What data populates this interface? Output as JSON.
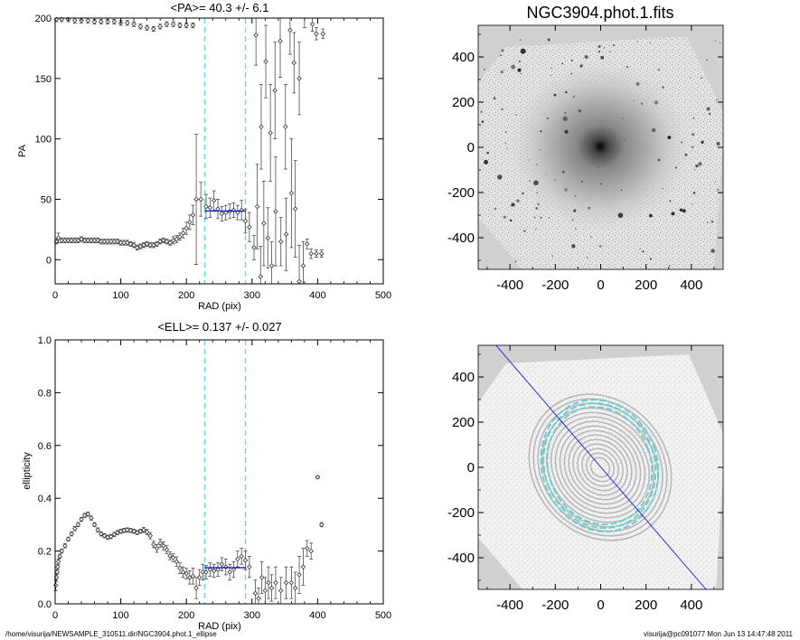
{
  "chart_data": [
    {
      "type": "scatter",
      "panel": "pa-profile",
      "title": "<PA>=  40.3 +/-   6.1",
      "xlabel": "RAD (pix)",
      "ylabel": "PA",
      "xlim": [
        0,
        500
      ],
      "ylim": [
        -20,
        200
      ],
      "xticks": [
        0,
        100,
        200,
        300,
        400,
        500
      ],
      "yticks": [
        0,
        50,
        100,
        150,
        200
      ],
      "vlines": [
        228,
        290
      ],
      "mean_segment": {
        "x": [
          228,
          290
        ],
        "y": 40.3
      },
      "series": [
        {
          "points": [
            [
              2,
              15
            ],
            [
              5,
              18
            ],
            [
              10,
              16
            ],
            [
              15,
              16
            ],
            [
              20,
              16
            ],
            [
              25,
              16
            ],
            [
              30,
              16
            ],
            [
              35,
              16
            ],
            [
              40,
              17
            ],
            [
              45,
              16
            ],
            [
              50,
              16
            ],
            [
              55,
              16
            ],
            [
              60,
              16
            ],
            [
              65,
              16
            ],
            [
              70,
              15
            ],
            [
              75,
              15
            ],
            [
              80,
              15
            ],
            [
              85,
              15
            ],
            [
              90,
              15
            ],
            [
              95,
              15
            ],
            [
              100,
              14
            ],
            [
              105,
              14
            ],
            [
              110,
              14
            ],
            [
              115,
              13
            ],
            [
              120,
              12
            ],
            [
              125,
              10
            ],
            [
              130,
              11
            ],
            [
              135,
              12
            ],
            [
              140,
              13
            ],
            [
              145,
              12
            ],
            [
              150,
              12
            ],
            [
              155,
              13
            ],
            [
              160,
              15
            ],
            [
              165,
              16
            ],
            [
              170,
              15
            ],
            [
              175,
              14
            ],
            [
              180,
              16
            ],
            [
              185,
              17
            ],
            [
              190,
              19
            ],
            [
              195,
              22
            ],
            [
              200,
              26
            ],
            [
              205,
              31
            ],
            [
              210,
              37
            ]
          ],
          "errors": [
            2,
            4,
            2,
            2,
            2,
            2,
            2,
            2,
            2,
            2,
            2,
            2,
            2,
            2,
            2,
            2,
            2,
            2,
            2,
            2,
            2,
            2,
            2,
            2,
            2,
            2,
            2,
            2,
            2,
            2,
            2,
            2,
            2,
            2,
            2,
            2,
            3,
            3,
            3,
            4,
            5,
            6,
            8
          ]
        },
        {
          "points": [
            [
              215,
              50
            ],
            [
              222,
              50
            ],
            [
              230,
              44
            ],
            [
              236,
              43
            ],
            [
              242,
              49
            ],
            [
              248,
              42
            ],
            [
              254,
              38
            ],
            [
              260,
              39
            ],
            [
              266,
              40
            ],
            [
              272,
              41
            ],
            [
              278,
              39
            ],
            [
              284,
              41
            ],
            [
              290,
              32
            ],
            [
              296,
              27
            ]
          ],
          "errors": [
            54,
            14,
            10,
            8,
            8,
            8,
            6,
            6,
            6,
            6,
            6,
            8,
            10,
            12
          ]
        },
        {
          "points": [
            [
              303,
              10
            ],
            [
              308,
              44
            ],
            [
              313,
              -14
            ],
            [
              318,
              30
            ],
            [
              324,
              18
            ],
            [
              330,
              -5
            ],
            [
              336,
              40
            ],
            [
              344,
              15
            ],
            [
              352,
              21
            ],
            [
              360,
              55
            ],
            [
              366,
              42
            ],
            [
              372,
              -18
            ],
            [
              378,
              -5
            ],
            [
              384,
              13
            ],
            [
              390,
              5
            ],
            [
              398,
              5
            ],
            [
              406,
              5
            ]
          ],
          "errors": [
            10,
            35,
            25,
            35,
            25,
            20,
            45,
            20,
            30,
            45,
            40,
            30,
            20,
            4,
            4,
            3,
            3
          ]
        },
        {
          "points": [
            [
              2,
              199
            ],
            [
              10,
              199
            ],
            [
              20,
              199
            ],
            [
              30,
              198
            ],
            [
              40,
              198
            ],
            [
              50,
              198
            ],
            [
              60,
              197
            ],
            [
              70,
              197
            ],
            [
              80,
              197
            ],
            [
              90,
              197
            ],
            [
              100,
              196
            ],
            [
              110,
              196
            ],
            [
              120,
              195
            ],
            [
              130,
              193
            ],
            [
              140,
              192
            ],
            [
              150,
              191
            ],
            [
              160,
              193
            ],
            [
              170,
              195
            ],
            [
              180,
              195
            ],
            [
              190,
              194
            ],
            [
              200,
              194
            ],
            [
              210,
              194
            ]
          ],
          "errors": [
            2,
            2,
            2,
            2,
            2,
            2,
            2,
            2,
            2,
            2,
            2,
            2,
            2,
            2,
            2,
            2,
            2,
            2,
            2,
            2,
            2,
            2
          ]
        },
        {
          "points": [
            [
              306,
              186
            ],
            [
              314,
              110
            ],
            [
              321,
              164
            ],
            [
              328,
              105
            ],
            [
              335,
              140
            ],
            [
              343,
              181
            ],
            [
              351,
              110
            ],
            [
              358,
              190
            ],
            [
              364,
              163
            ],
            [
              372,
              150
            ],
            [
              380,
              202
            ],
            [
              392,
              195
            ],
            [
              398,
              187
            ],
            [
              408,
              187
            ]
          ],
          "errors": [
            25,
            35,
            30,
            40,
            40,
            30,
            35,
            20,
            25,
            30,
            10,
            6,
            5,
            4
          ]
        }
      ]
    },
    {
      "type": "image",
      "panel": "galaxy-image",
      "title": "NGC3904.phot.1.fits",
      "xlim": [
        -540,
        540
      ],
      "ylim": [
        -540,
        540
      ],
      "xticks": [
        -400,
        -200,
        0,
        200,
        400
      ],
      "yticks": [
        -400,
        -200,
        0,
        200,
        400
      ]
    },
    {
      "type": "scatter",
      "panel": "ellipticity-profile",
      "title": "<ELL>= 0.137 +/-  0.027",
      "xlabel": "RAD (pix)",
      "ylabel": "ellipticity",
      "xlim": [
        0,
        500
      ],
      "ylim": [
        0,
        1
      ],
      "xticks": [
        0,
        100,
        200,
        300,
        400,
        500
      ],
      "yticks": [
        0.0,
        0.2,
        0.4,
        0.6,
        0.8,
        1.0
      ],
      "ytick_labels": [
        "0.0",
        "0.2",
        "0.4",
        "0.6",
        "0.8",
        "1.0"
      ],
      "vlines": [
        228,
        290
      ],
      "mean_segment": {
        "x": [
          228,
          290
        ],
        "y": 0.137
      },
      "series": [
        {
          "points": [
            [
              1,
              0.07
            ],
            [
              2,
              0.1
            ],
            [
              3,
              0.12
            ],
            [
              4,
              0.14
            ],
            [
              5,
              0.16
            ],
            [
              7,
              0.18
            ],
            [
              10,
              0.2
            ],
            [
              15,
              0.22
            ],
            [
              20,
              0.245
            ],
            [
              25,
              0.265
            ],
            [
              30,
              0.285
            ],
            [
              35,
              0.3
            ],
            [
              40,
              0.32
            ],
            [
              45,
              0.335
            ],
            [
              50,
              0.34
            ],
            [
              55,
              0.325
            ],
            [
              60,
              0.3
            ],
            [
              65,
              0.28
            ],
            [
              70,
              0.265
            ],
            [
              75,
              0.258
            ],
            [
              80,
              0.252
            ],
            [
              85,
              0.255
            ],
            [
              90,
              0.263
            ],
            [
              95,
              0.27
            ],
            [
              100,
              0.275
            ],
            [
              105,
              0.278
            ],
            [
              110,
              0.28
            ],
            [
              115,
              0.278
            ],
            [
              120,
              0.275
            ],
            [
              125,
              0.27
            ],
            [
              130,
              0.275
            ],
            [
              135,
              0.28
            ],
            [
              140,
              0.272
            ],
            [
              145,
              0.258
            ],
            [
              150,
              0.225
            ],
            [
              155,
              0.21
            ],
            [
              160,
              0.23
            ],
            [
              165,
              0.22
            ],
            [
              170,
              0.205
            ],
            [
              175,
              0.182
            ],
            [
              180,
              0.175
            ],
            [
              185,
              0.16
            ],
            [
              190,
              0.135
            ],
            [
              195,
              0.12
            ],
            [
              200,
              0.115
            ],
            [
              205,
              0.1
            ],
            [
              210,
              0.105
            ],
            [
              215,
              0.06
            ],
            [
              220,
              0.1
            ],
            [
              225,
              0.12
            ],
            [
              230,
              0.12
            ],
            [
              236,
              0.13
            ],
            [
              242,
              0.125
            ],
            [
              248,
              0.13
            ],
            [
              254,
              0.15
            ],
            [
              260,
              0.14
            ],
            [
              266,
              0.12
            ],
            [
              272,
              0.13
            ],
            [
              278,
              0.17
            ],
            [
              284,
              0.18
            ],
            [
              290,
              0.165
            ],
            [
              296,
              0.14
            ]
          ],
          "errors": [
            0.02,
            0.015,
            0.01,
            0.01,
            0.01,
            0.008,
            0.008,
            0.008,
            0.008,
            0.008,
            0.008,
            0.008,
            0.008,
            0.008,
            0.008,
            0.008,
            0.008,
            0.008,
            0.008,
            0.008,
            0.008,
            0.008,
            0.008,
            0.008,
            0.008,
            0.008,
            0.008,
            0.008,
            0.008,
            0.008,
            0.008,
            0.01,
            0.01,
            0.012,
            0.012,
            0.015,
            0.015,
            0.015,
            0.015,
            0.015,
            0.015,
            0.018,
            0.02,
            0.02,
            0.02,
            0.025,
            0.03,
            0.04,
            0.03,
            0.03,
            0.025,
            0.025,
            0.025,
            0.025,
            0.025,
            0.03,
            0.03,
            0.03,
            0.03,
            0.03,
            0.035,
            0.04
          ]
        },
        {
          "points": [
            [
              305,
              0.04
            ],
            [
              310,
              0.02
            ],
            [
              315,
              0.1
            ],
            [
              320,
              0.05
            ],
            [
              325,
              0.08
            ],
            [
              330,
              0.06
            ],
            [
              336,
              0.08
            ],
            [
              344,
              0.05
            ],
            [
              352,
              0.08
            ],
            [
              360,
              0.08
            ],
            [
              366,
              0.06
            ],
            [
              372,
              0.11
            ],
            [
              378,
              0.14
            ],
            [
              384,
              0.21
            ],
            [
              390,
              0.2
            ],
            [
              400,
              0.48
            ],
            [
              406,
              0.3
            ]
          ],
          "errors": [
            0.05,
            0.04,
            0.06,
            0.05,
            0.06,
            0.05,
            0.06,
            0.05,
            0.06,
            0.06,
            0.06,
            0.07,
            0.07,
            0.03,
            0.03,
            0.005,
            0.008
          ]
        }
      ]
    },
    {
      "type": "image",
      "panel": "isophote-image",
      "xlim": [
        -540,
        540
      ],
      "ylim": [
        -540,
        540
      ],
      "xticks": [
        -400,
        -200,
        0,
        200,
        400
      ],
      "yticks": [
        -400,
        -200,
        0,
        200,
        400
      ]
    }
  ],
  "footer": {
    "left": "/home/visurija/NEWSAMPLE_310511.dir/NGC3904.phot.1_ellipse",
    "right": "visurija@pc091077  Mon Jun 13 14:47:48 2011"
  },
  "colors": {
    "points": "#333333",
    "mean_segment": "#0000cc",
    "vlines": "#66dddd",
    "isophotes": "#66cccc",
    "major_axis": "#0000ff",
    "sky": "#cccccc"
  }
}
